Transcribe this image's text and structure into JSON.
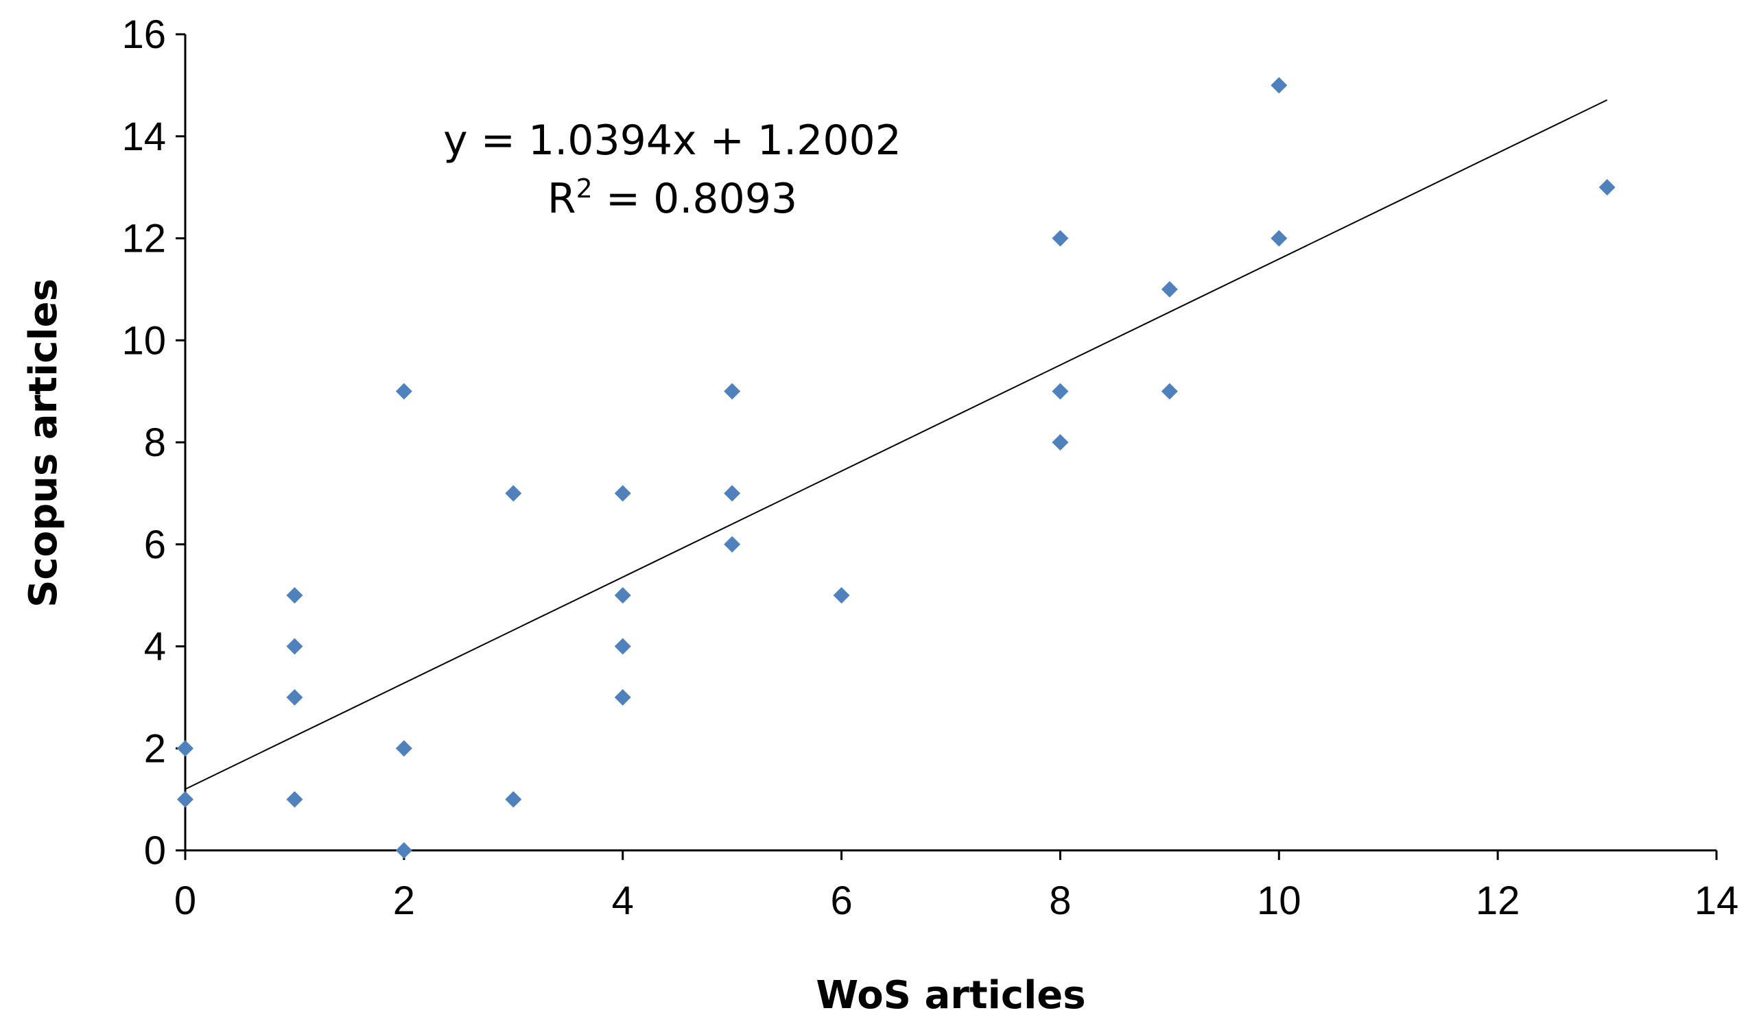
{
  "chart_data": {
    "type": "scatter",
    "title": "",
    "xlabel": "WoS articles",
    "ylabel": "Scopus articles",
    "xlim": [
      0,
      14
    ],
    "ylim": [
      0,
      16
    ],
    "x_ticks": [
      "0",
      "2",
      "4",
      "6",
      "8",
      "10",
      "12",
      "14"
    ],
    "y_ticks": [
      "0",
      "2",
      "4",
      "6",
      "8",
      "10",
      "12",
      "14",
      "16"
    ],
    "grid": false,
    "legend": "none",
    "marker": "diamond",
    "marker_color": "#4f81bd",
    "trendline_color": "#000000",
    "series": [
      {
        "x": [
          0,
          0,
          1,
          1,
          1,
          1,
          2,
          2,
          2,
          3,
          3,
          4,
          4,
          4,
          4,
          5,
          5,
          5,
          6,
          8,
          8,
          8,
          9,
          9,
          10,
          10,
          13
        ],
        "y": [
          2,
          1,
          5,
          4,
          3,
          1,
          9,
          2,
          0,
          7,
          1,
          7,
          5,
          4,
          3,
          9,
          7,
          6,
          5,
          12,
          9,
          8,
          11,
          9,
          15,
          12,
          13
        ]
      }
    ],
    "trendline": {
      "slope": 1.0394,
      "intercept": 1.2002,
      "x_range": [
        0,
        13
      ],
      "equation": "y = 1.0394x + 1.2002",
      "r2_prefix": "R",
      "r2_sup": "2",
      "r2_value": " = 0.8093"
    }
  }
}
